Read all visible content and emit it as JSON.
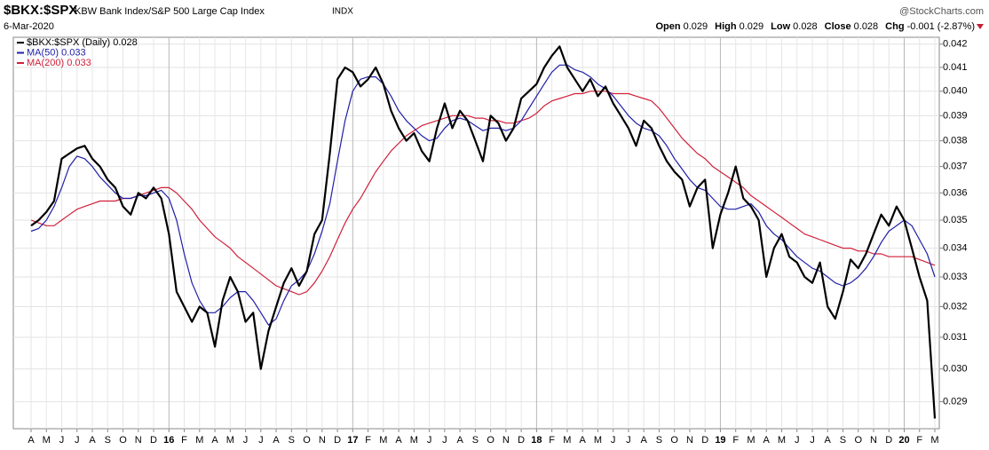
{
  "header": {
    "symbol": "$BKX:$SPX",
    "description": "KBW Bank Index/S&P 500 Large Cap Index",
    "exchange": "INDX",
    "date": "6-Mar-2020",
    "source": "@StockCharts.com",
    "quote": [
      {
        "label": "Open",
        "value": "0.029"
      },
      {
        "label": "High",
        "value": "0.029"
      },
      {
        "label": "Low",
        "value": "0.028"
      },
      {
        "label": "Close",
        "value": "0.028"
      },
      {
        "label": "Chg",
        "value": "-0.001 (-2.87%)"
      }
    ]
  },
  "chart_data": {
    "type": "line",
    "log": true,
    "grid": true,
    "legend": "top-left",
    "categories": [
      "A",
      null,
      "M",
      null,
      "J",
      null,
      "J",
      null,
      "A",
      null,
      "S",
      null,
      "O",
      null,
      "N",
      null,
      "D",
      null,
      "16",
      null,
      "F",
      null,
      "M",
      null,
      "A",
      null,
      "M",
      null,
      "J",
      null,
      "J",
      null,
      "A",
      null,
      "S",
      null,
      "O",
      null,
      "N",
      null,
      "D",
      null,
      "17",
      null,
      "F",
      null,
      "M",
      null,
      "A",
      null,
      "M",
      null,
      "J",
      null,
      "J",
      null,
      "A",
      null,
      "S",
      null,
      "O",
      null,
      "N",
      null,
      "D",
      null,
      "18",
      null,
      "F",
      null,
      "M",
      null,
      "A",
      null,
      "M",
      null,
      "J",
      null,
      "J",
      null,
      "A",
      null,
      "S",
      null,
      "O",
      null,
      "N",
      null,
      "D",
      null,
      "19",
      null,
      "F",
      null,
      "M",
      null,
      "A",
      null,
      "M",
      null,
      "J",
      null,
      "J",
      null,
      "A",
      null,
      "S",
      null,
      "O",
      null,
      "N",
      null,
      "D",
      null,
      "20",
      null,
      "F",
      null,
      "M"
    ],
    "series": [
      {
        "name": "$BKX:$SPX (Daily) 0.028",
        "color": "#000000",
        "width": 2.2,
        "values": [
          0.0348,
          0.035,
          0.0353,
          0.0357,
          0.0373,
          0.0375,
          0.0377,
          0.0378,
          0.0373,
          0.037,
          0.0365,
          0.0362,
          0.0355,
          0.0352,
          0.036,
          0.0358,
          0.0362,
          0.0358,
          0.0345,
          0.0325,
          0.032,
          0.0315,
          0.032,
          0.0318,
          0.0307,
          0.0322,
          0.033,
          0.0325,
          0.0315,
          0.0318,
          0.03,
          0.0312,
          0.032,
          0.0328,
          0.0333,
          0.0327,
          0.0332,
          0.0345,
          0.035,
          0.0375,
          0.0405,
          0.041,
          0.0408,
          0.0402,
          0.0405,
          0.041,
          0.0403,
          0.0392,
          0.0385,
          0.038,
          0.0383,
          0.0376,
          0.0372,
          0.0385,
          0.0395,
          0.0385,
          0.0392,
          0.0388,
          0.038,
          0.0372,
          0.039,
          0.0387,
          0.038,
          0.0385,
          0.0397,
          0.04,
          0.0403,
          0.041,
          0.0415,
          0.0419,
          0.041,
          0.0405,
          0.04,
          0.0405,
          0.0398,
          0.0402,
          0.0395,
          0.039,
          0.0385,
          0.0378,
          0.0388,
          0.0385,
          0.0378,
          0.0372,
          0.0368,
          0.0365,
          0.0355,
          0.0362,
          0.0365,
          0.034,
          0.0352,
          0.036,
          0.037,
          0.0358,
          0.0355,
          0.035,
          0.033,
          0.034,
          0.0345,
          0.0337,
          0.0335,
          0.033,
          0.0328,
          0.0335,
          0.032,
          0.0316,
          0.0325,
          0.0336,
          0.0333,
          0.0338,
          0.0345,
          0.0352,
          0.0348,
          0.0355,
          0.035,
          0.034,
          0.033,
          0.0322,
          0.0285
        ]
      },
      {
        "name": "MA(50) 0.033",
        "color": "#1f1fa8",
        "width": 1.2,
        "values": [
          0.0346,
          0.0347,
          0.035,
          0.0355,
          0.0362,
          0.037,
          0.0374,
          0.0373,
          0.037,
          0.0366,
          0.0363,
          0.036,
          0.0358,
          0.0358,
          0.0359,
          0.0359,
          0.036,
          0.0361,
          0.0358,
          0.035,
          0.0338,
          0.0328,
          0.0322,
          0.0318,
          0.0318,
          0.032,
          0.0323,
          0.0325,
          0.0325,
          0.0322,
          0.0318,
          0.0314,
          0.0316,
          0.0322,
          0.0327,
          0.0329,
          0.0332,
          0.0338,
          0.0346,
          0.0356,
          0.0372,
          0.0388,
          0.04,
          0.0405,
          0.0406,
          0.0406,
          0.0403,
          0.0398,
          0.0392,
          0.0388,
          0.0385,
          0.0382,
          0.038,
          0.0381,
          0.0385,
          0.0388,
          0.0389,
          0.0388,
          0.0386,
          0.0384,
          0.0385,
          0.0385,
          0.0384,
          0.0385,
          0.0388,
          0.0393,
          0.0398,
          0.0403,
          0.0408,
          0.0411,
          0.0411,
          0.0409,
          0.0408,
          0.0406,
          0.0403,
          0.0401,
          0.0398,
          0.0394,
          0.039,
          0.0387,
          0.0385,
          0.0384,
          0.0382,
          0.0378,
          0.0373,
          0.0369,
          0.0365,
          0.0362,
          0.0361,
          0.0358,
          0.0355,
          0.0354,
          0.0354,
          0.0355,
          0.0356,
          0.0353,
          0.0348,
          0.0345,
          0.0343,
          0.034,
          0.0337,
          0.0335,
          0.0333,
          0.0332,
          0.033,
          0.0328,
          0.0327,
          0.0328,
          0.033,
          0.0333,
          0.0337,
          0.0342,
          0.0346,
          0.0348,
          0.035,
          0.0348,
          0.0343,
          0.0338,
          0.033
        ]
      },
      {
        "name": "MA(200) 0.033",
        "color": "#d0203a",
        "width": 1.2,
        "values": [
          0.035,
          0.0349,
          0.0348,
          0.0348,
          0.035,
          0.0352,
          0.0354,
          0.0355,
          0.0356,
          0.0357,
          0.0357,
          0.0357,
          0.0358,
          0.0358,
          0.0359,
          0.036,
          0.0361,
          0.0362,
          0.0362,
          0.036,
          0.0357,
          0.0354,
          0.035,
          0.0347,
          0.0344,
          0.0342,
          0.034,
          0.0337,
          0.0335,
          0.0333,
          0.0331,
          0.0329,
          0.0327,
          0.0326,
          0.0325,
          0.0324,
          0.0325,
          0.0328,
          0.0332,
          0.0337,
          0.0343,
          0.0349,
          0.0354,
          0.0358,
          0.0363,
          0.0368,
          0.0372,
          0.0376,
          0.0379,
          0.0382,
          0.0384,
          0.0386,
          0.0387,
          0.0388,
          0.0389,
          0.039,
          0.039,
          0.039,
          0.0389,
          0.0389,
          0.0388,
          0.0388,
          0.0387,
          0.0387,
          0.0388,
          0.0389,
          0.0391,
          0.0394,
          0.0396,
          0.0397,
          0.0398,
          0.0399,
          0.0399,
          0.04,
          0.04,
          0.04,
          0.0399,
          0.0399,
          0.0399,
          0.0398,
          0.0397,
          0.0396,
          0.0393,
          0.0389,
          0.0385,
          0.0381,
          0.0378,
          0.0375,
          0.0373,
          0.037,
          0.0368,
          0.0366,
          0.0364,
          0.0362,
          0.0359,
          0.0357,
          0.0355,
          0.0353,
          0.0351,
          0.0349,
          0.0347,
          0.0345,
          0.0344,
          0.0343,
          0.0342,
          0.0341,
          0.034,
          0.034,
          0.0339,
          0.0339,
          0.0338,
          0.0338,
          0.0337,
          0.0337,
          0.0337,
          0.0337,
          0.0336,
          0.0335,
          0.0334
        ]
      }
    ],
    "ylim": [
      0.0282,
      0.0423
    ],
    "yticks": [
      0.029,
      {
        "value": 0.03,
        "label": "0.030"
      },
      0.031,
      0.032,
      0.033,
      0.034,
      0.035,
      0.036,
      0.037,
      0.038,
      0.039,
      {
        "value": 0.04,
        "label": "0.040"
      },
      0.041,
      0.042
    ]
  }
}
